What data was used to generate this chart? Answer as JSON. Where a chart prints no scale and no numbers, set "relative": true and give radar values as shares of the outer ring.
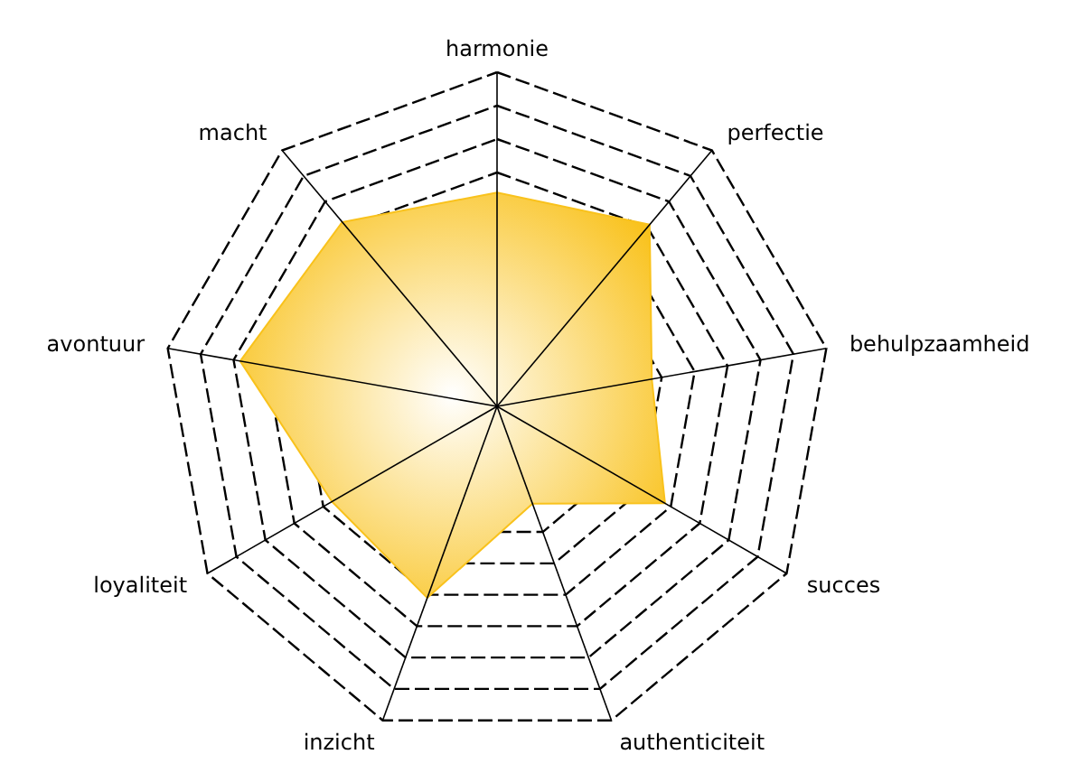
{
  "chart_data": {
    "type": "radar",
    "relative": true,
    "grid": true,
    "categories": [
      "harmonie",
      "perfectie",
      "behulpzaamheid",
      "succes",
      "authenticiteit",
      "inzicht",
      "loyaliteit",
      "avontuur",
      "macht"
    ],
    "series": [
      {
        "color": "#f9c21c",
        "values": [
          0.64,
          0.71,
          0.47,
          0.58,
          0.31,
          0.61,
          0.57,
          0.78,
          0.72
        ]
      }
    ]
  }
}
